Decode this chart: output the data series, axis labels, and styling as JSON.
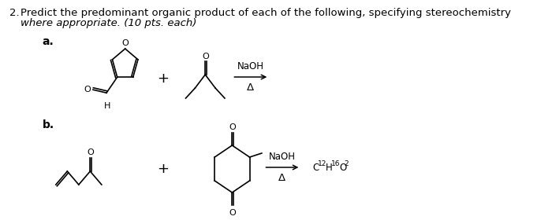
{
  "title_num": "2.",
  "title_text": "Predict the predominant organic product of each of the following, specifying stereochemistry",
  "subtitle_text": "where appropriate. (10 pts. each)",
  "label_a": "a.",
  "label_b": "b.",
  "reagent_a": "NaOH",
  "condition_a": "Δ",
  "reagent_b": "NaOH",
  "condition_b": "Δ",
  "background_color": "#ffffff",
  "text_color": "#000000",
  "font_size_title": 9.5,
  "font_size_label": 10,
  "font_size_reagent": 8.5,
  "font_size_formula": 8.5,
  "font_size_atom": 8.0
}
